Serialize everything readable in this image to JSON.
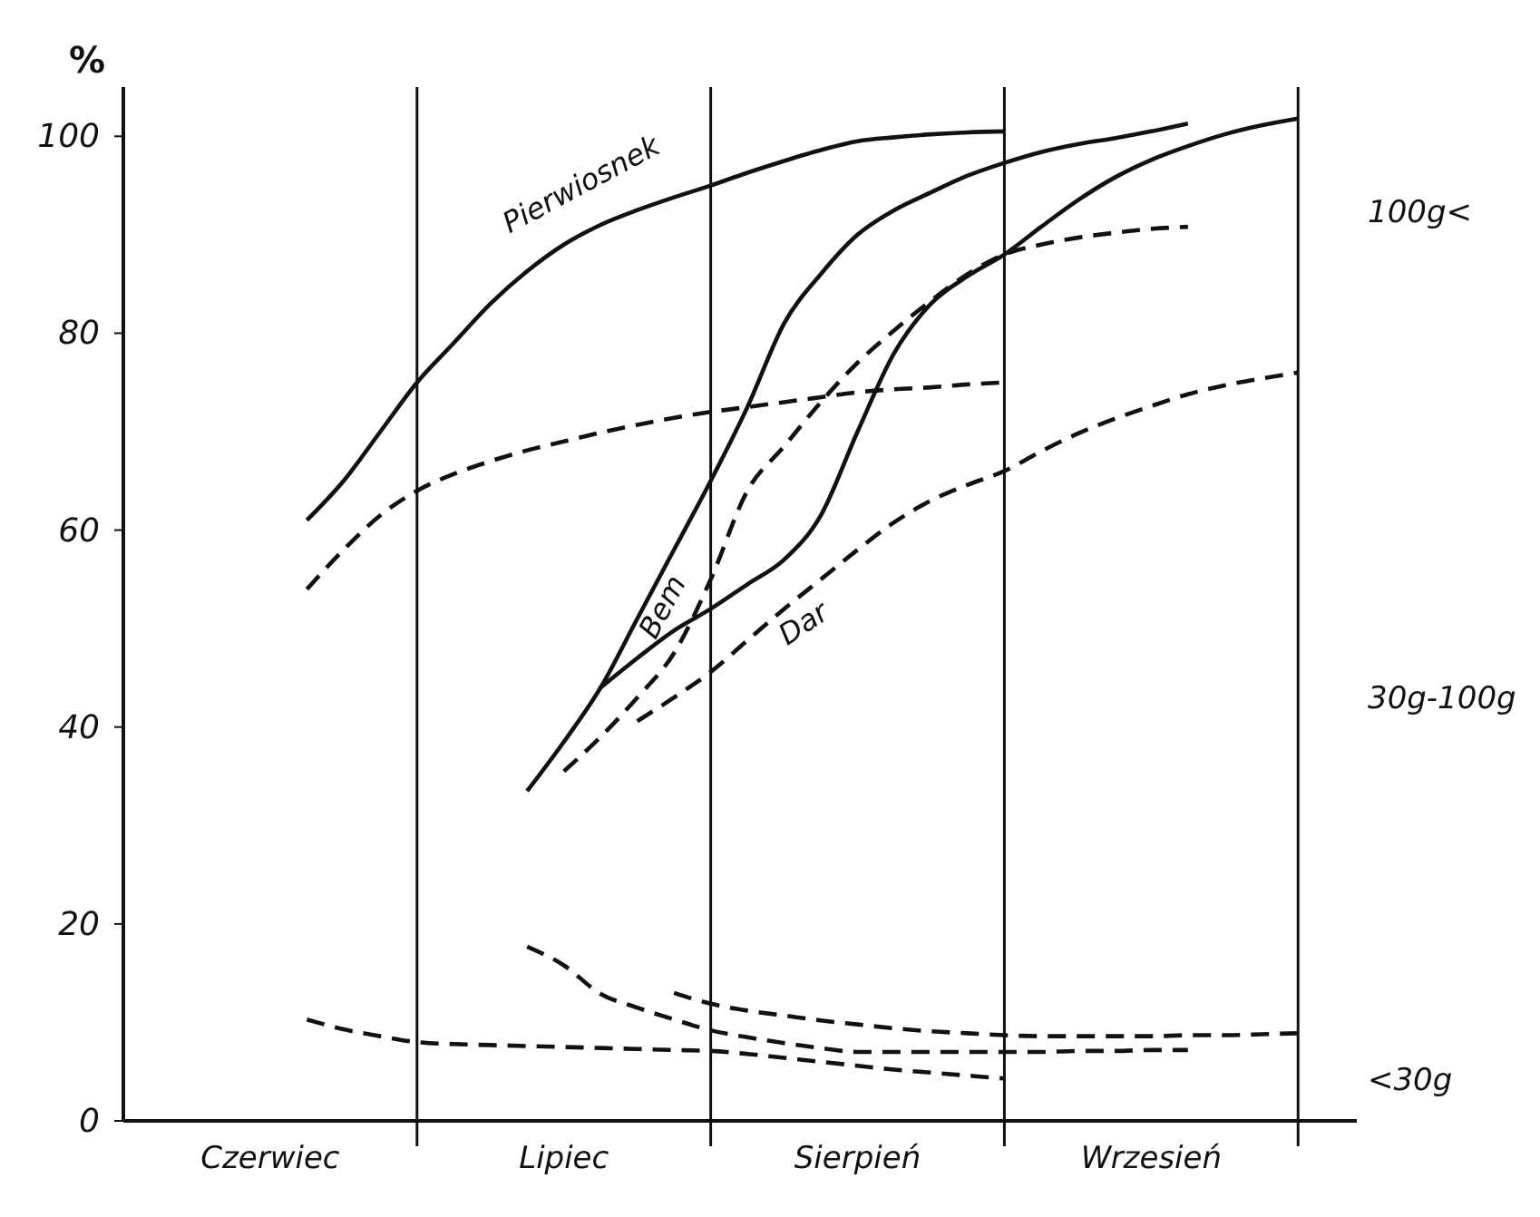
{
  "chart_data": {
    "type": "line",
    "ylabel": "%",
    "categories": [
      null,
      null,
      null,
      null,
      "Czerwiec",
      null,
      null,
      null,
      null,
      null,
      null,
      null,
      "Lipiec",
      null,
      null,
      null,
      null,
      null,
      null,
      null,
      "Sierpień",
      null,
      null,
      null,
      null,
      null,
      null,
      null,
      "Wrzesień",
      null,
      null,
      null,
      null
    ],
    "ylim": [
      0,
      105
    ],
    "yticks": [
      0,
      20,
      40,
      60,
      80,
      100
    ],
    "grid": "x",
    "marker": "none",
    "series": [
      {
        "name": "Pierwiosnek",
        "color": "#111111",
        "line_style": "solid",
        "values": [
          null,
          null,
          null,
          null,
          null,
          61,
          65,
          70,
          75,
          79,
          83,
          86.3,
          89,
          91,
          92.5,
          93.8,
          95,
          96.3,
          97.5,
          98.6,
          99.5,
          99.9,
          100.2,
          100.4,
          100.5,
          null,
          null,
          null,
          null,
          null,
          null,
          null,
          null
        ]
      },
      {
        "color": "#111111",
        "line_style": "dashed",
        "values": [
          null,
          null,
          null,
          null,
          null,
          54,
          58,
          61.5,
          64,
          65.7,
          67,
          68.1,
          69,
          69.9,
          70.7,
          71.4,
          72,
          72.5,
          73,
          73.5,
          74,
          74.3,
          74.5,
          74.8,
          75,
          null,
          null,
          null,
          null,
          null,
          null,
          null,
          null
        ]
      },
      {
        "color": "#111111",
        "line_style": "dashed",
        "values": [
          null,
          null,
          null,
          null,
          null,
          10.3,
          9.3,
          8.6,
          8,
          7.8,
          7.7,
          7.6,
          7.5,
          7.4,
          7.3,
          7.2,
          7.1,
          6.8,
          6.4,
          6,
          5.6,
          5.2,
          4.9,
          4.6,
          4.3,
          null,
          null,
          null,
          null,
          null,
          null,
          null,
          null
        ]
      },
      {
        "name": "Bem",
        "color": "#111111",
        "line_style": "solid",
        "values": [
          null,
          null,
          null,
          null,
          null,
          null,
          null,
          null,
          null,
          null,
          null,
          33.5,
          38.5,
          44,
          51,
          58,
          65,
          72.5,
          81,
          86,
          90,
          92.5,
          94.3,
          96,
          97.3,
          98.4,
          99.2,
          99.8,
          100.5,
          101.3,
          null,
          null,
          null
        ]
      },
      {
        "color": "#111111",
        "line_style": "dashed",
        "values": [
          null,
          null,
          null,
          null,
          null,
          null,
          null,
          null,
          null,
          null,
          null,
          null,
          35.5,
          39,
          43,
          47.5,
          55,
          64,
          68.5,
          73,
          77,
          80.3,
          83.3,
          86,
          88,
          89,
          89.7,
          90.2,
          90.6,
          90.8,
          null,
          null,
          null
        ]
      },
      {
        "color": "#111111",
        "line_style": "dashed",
        "values": [
          null,
          null,
          null,
          null,
          null,
          null,
          null,
          null,
          null,
          null,
          null,
          17.7,
          15.8,
          12.9,
          11.5,
          10.3,
          9.2,
          8.5,
          7.9,
          7.4,
          7,
          7,
          7,
          7,
          7,
          7,
          7.1,
          7.1,
          7.2,
          7.2,
          null,
          null,
          null
        ]
      },
      {
        "name": "Dar",
        "color": "#111111",
        "line_style": "solid",
        "values": [
          null,
          null,
          null,
          null,
          null,
          null,
          null,
          null,
          null,
          null,
          null,
          null,
          null,
          44,
          47,
          49.8,
          52,
          54.5,
          57,
          61.5,
          70,
          78,
          83,
          85.8,
          88,
          90.8,
          93.5,
          95.8,
          97.6,
          99,
          100.2,
          101.1,
          101.8
        ]
      },
      {
        "color": "#111111",
        "line_style": "dashed",
        "values": [
          null,
          null,
          null,
          null,
          null,
          null,
          null,
          null,
          null,
          null,
          null,
          null,
          null,
          null,
          40.6,
          43,
          45.6,
          48.8,
          52,
          55,
          58,
          60.8,
          63,
          64.6,
          66,
          68,
          69.8,
          71.3,
          72.6,
          73.8,
          74.7,
          75.4,
          76
        ]
      },
      {
        "color": "#111111",
        "line_style": "dashed",
        "values": [
          null,
          null,
          null,
          null,
          null,
          null,
          null,
          null,
          null,
          null,
          null,
          null,
          null,
          null,
          null,
          13,
          11.9,
          11.2,
          10.7,
          10.2,
          9.8,
          9.4,
          9.1,
          8.9,
          8.7,
          8.6,
          8.6,
          8.6,
          8.6,
          8.7,
          8.7,
          8.8,
          8.9
        ]
      }
    ],
    "annotations": [
      "100g<",
      "30g-100g",
      "<30g"
    ]
  }
}
